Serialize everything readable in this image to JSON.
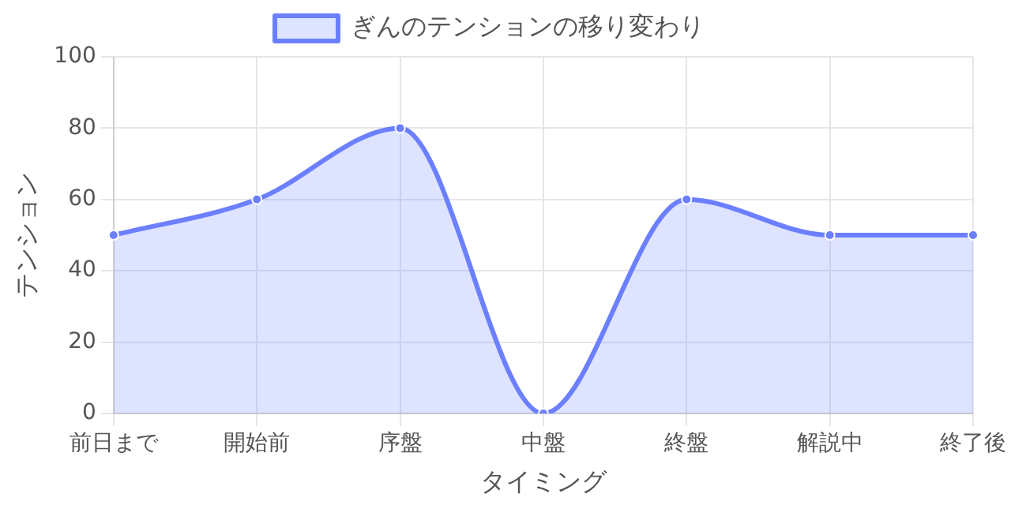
{
  "chart_data": {
    "type": "area",
    "xlabel": "タイミング",
    "ylabel": "テンション",
    "categories": [
      "前日まで",
      "開始前",
      "序盤",
      "中盤",
      "終盤",
      "解説中",
      "終了後"
    ],
    "series": [
      {
        "name": "ぎんのテンションの移り変わり",
        "color": "#6b7fff",
        "values": [
          50,
          60,
          80,
          0,
          60,
          50,
          50
        ]
      }
    ],
    "ylim": [
      0,
      100
    ],
    "yticks": [
      0,
      20,
      40,
      60,
      80,
      100
    ],
    "grid": true,
    "legend": "top",
    "marker": "circle",
    "line_style": "solid"
  }
}
